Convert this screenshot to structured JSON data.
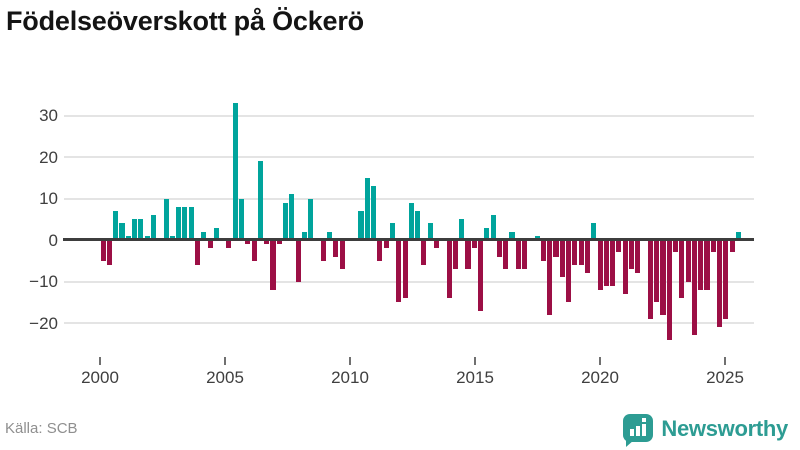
{
  "title": "Födelseöverskott på Öckerö",
  "source": "Källa: SCB",
  "logo": {
    "text": "Newsworthy"
  },
  "colors": {
    "positive_bar": "#00a49c",
    "negative_bar": "#9c0f45",
    "gridline": "#e4e4e4",
    "zero_axis": "#3d3d3d",
    "tick_label": "#3f3f3f",
    "title_text": "#141414",
    "source_text": "#8f8f8f",
    "brand_teal": "#2d9c93"
  },
  "chart_data": {
    "type": "bar",
    "title": "Födelseöverskott på Öckerö",
    "xlabel": "",
    "ylabel": "",
    "frequency": "quarterly",
    "start_period": "2000 Q1",
    "end_period": "2025 Q2",
    "x_tick_labels": [
      "2000",
      "2005",
      "2010",
      "2015",
      "2020",
      "2025"
    ],
    "x_tick_years": [
      2000,
      2005,
      2010,
      2015,
      2020,
      2025
    ],
    "y_ticks": [
      30,
      20,
      10,
      0,
      -10,
      -20
    ],
    "y_tick_labels": [
      "30",
      "20",
      "10",
      "0",
      "−10",
      "−20"
    ],
    "ylim": [
      -27,
      35
    ],
    "grid": "horizontal",
    "legend": "none",
    "series_note": "positive quarters teal, negative quarters dark red",
    "values": [
      -5,
      -6,
      7,
      4,
      1,
      5,
      5,
      1,
      6,
      0,
      10,
      1,
      8,
      8,
      8,
      -6,
      2,
      -2,
      3,
      0,
      -2,
      33,
      10,
      -1,
      -5,
      19,
      -1,
      -12,
      -1,
      9,
      11,
      -10,
      2,
      10,
      0,
      -5,
      2,
      -4,
      -7,
      0,
      0,
      7,
      15,
      13,
      -5,
      -2,
      4,
      -15,
      -14,
      9,
      7,
      -6,
      4,
      -2,
      0,
      -14,
      -7,
      5,
      -7,
      -2,
      -17,
      3,
      6,
      -4,
      -7,
      2,
      -7,
      -7,
      0,
      1,
      -5,
      -18,
      -4,
      -9,
      -15,
      -6,
      -6,
      -8,
      4,
      -12,
      -11,
      -11,
      -3,
      -13,
      -7,
      -8,
      0,
      -19,
      -15,
      -18,
      -24,
      -3,
      -14,
      -10,
      -23,
      -12,
      -12,
      -3,
      -21,
      -19,
      -3,
      2
    ]
  }
}
